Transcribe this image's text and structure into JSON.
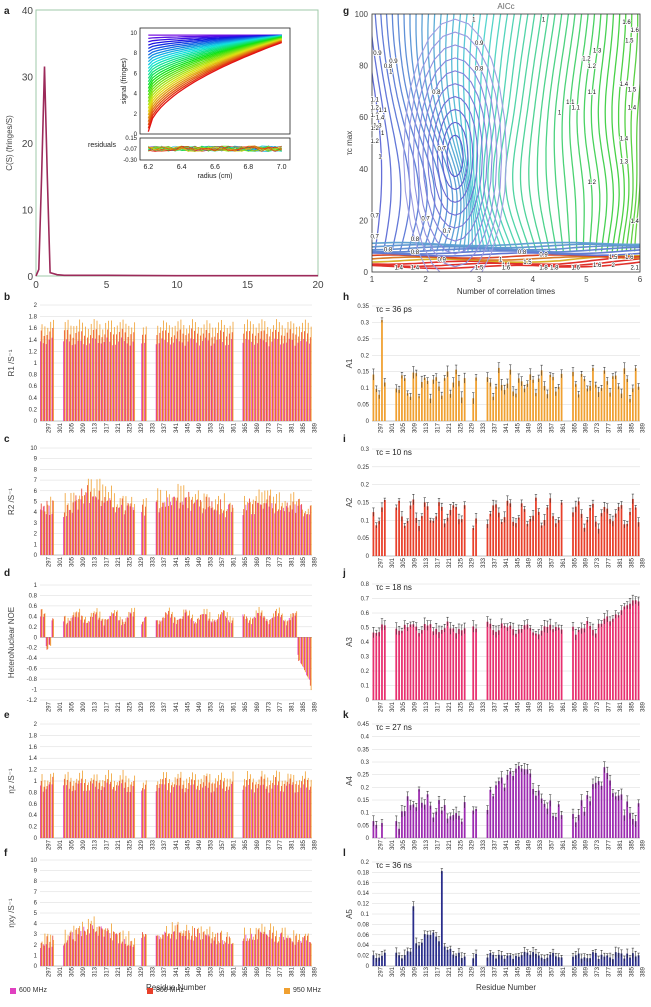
{
  "panels": {
    "a": "a",
    "b": "b",
    "c": "c",
    "d": "d",
    "e": "e",
    "f": "f",
    "g": "g",
    "h": "h",
    "i": "i",
    "j": "j",
    "k": "k",
    "l": "l"
  },
  "legend": {
    "items": [
      {
        "label": "600 MHz",
        "color": "#e040c0"
      },
      {
        "label": "800 MHz",
        "color": "#e8402a"
      },
      {
        "label": "950 MHz",
        "color": "#f0a030"
      }
    ]
  },
  "chart_data": [
    {
      "id": "a",
      "type": "line",
      "title": "",
      "xlabel": "",
      "ylabel": "C(S) (fringes/S)",
      "xlim": [
        0,
        20
      ],
      "ylim": [
        0,
        40
      ],
      "xticks": [
        "0",
        "5",
        "10",
        "15",
        "20"
      ],
      "yticks": [
        "0",
        "10",
        "20",
        "30",
        "40"
      ],
      "series": [
        {
          "name": "c(s)",
          "x": [
            0,
            0.2,
            0.4,
            0.6,
            0.8,
            1.0,
            1.5,
            2,
            5,
            10,
            15,
            20
          ],
          "y": [
            0,
            1,
            15,
            31.5,
            15,
            0.5,
            0.2,
            0.1,
            0.1,
            0.05,
            0.05,
            0.05
          ],
          "color": "#9c2a5a"
        }
      ],
      "inset": {
        "type": "line",
        "xlabel": "radius (cm)",
        "ylabel_top": "signal (fringes)",
        "ylabel_bottom": "residuals",
        "xticks": [
          "6.2",
          "6.4",
          "6.6",
          "6.8",
          "7.0"
        ],
        "yticks_top": [
          "0",
          "2",
          "4",
          "6",
          "8",
          "10"
        ],
        "yticks_bottom": [
          "0.15",
          "-0.07",
          "-0.30"
        ],
        "xlim": [
          6.15,
          7.05
        ],
        "ylim_top": [
          0,
          10.5
        ],
        "ylim_bottom": [
          -0.3,
          0.15
        ],
        "scan_count": 30
      }
    },
    {
      "id": "g",
      "type": "heatmap",
      "title": "AICc",
      "xlabel": "Number of correlation times",
      "ylabel": "τc max",
      "xlim": [
        1,
        6
      ],
      "ylim": [
        0,
        100
      ],
      "xticks": [
        "1",
        "2",
        "3",
        "4",
        "5",
        "6"
      ],
      "yticks": [
        "0",
        "20",
        "40",
        "60",
        "80",
        "100"
      ],
      "contour_labels": [
        {
          "text": "1",
          "x": 2.9,
          "y": 98
        },
        {
          "text": "1",
          "x": 4.2,
          "y": 98
        },
        {
          "text": "0.9",
          "x": 3.0,
          "y": 89
        },
        {
          "text": "0.8",
          "x": 3.0,
          "y": 79
        },
        {
          "text": "0.9",
          "x": 1.1,
          "y": 85
        },
        {
          "text": "0.8",
          "x": 1.3,
          "y": 80
        },
        {
          "text": "1",
          "x": 1.35,
          "y": 78
        },
        {
          "text": "0.9",
          "x": 1.4,
          "y": 82
        },
        {
          "text": "0.8",
          "x": 2.2,
          "y": 70
        },
        {
          "text": "0.7",
          "x": 2.3,
          "y": 48
        },
        {
          "text": "0.7",
          "x": 2.0,
          "y": 21
        },
        {
          "text": "0.7",
          "x": 2.4,
          "y": 16
        },
        {
          "text": "0.7",
          "x": 1.05,
          "y": 14
        },
        {
          "text": "0.7",
          "x": 1.05,
          "y": 22
        },
        {
          "text": "0.8",
          "x": 1.3,
          "y": 9
        },
        {
          "text": "0.8",
          "x": 1.8,
          "y": 13
        },
        {
          "text": "0.8",
          "x": 1.8,
          "y": 8
        },
        {
          "text": "0.8",
          "x": 3.8,
          "y": 8
        },
        {
          "text": "0.9",
          "x": 4.2,
          "y": 7
        },
        {
          "text": "0.9",
          "x": 2.3,
          "y": 5
        },
        {
          "text": "1",
          "x": 3.4,
          "y": 5
        },
        {
          "text": "1.1",
          "x": 3.5,
          "y": 3
        },
        {
          "text": "1",
          "x": 1.2,
          "y": 54
        },
        {
          "text": "1",
          "x": 1.15,
          "y": 45
        },
        {
          "text": "1.1",
          "x": 1.05,
          "y": 67
        },
        {
          "text": "1.2",
          "x": 1.05,
          "y": 51
        },
        {
          "text": "1.3",
          "x": 1.05,
          "y": 61
        },
        {
          "text": "1.3",
          "x": 1.1,
          "y": 57
        },
        {
          "text": "1.2",
          "x": 1.05,
          "y": 56
        },
        {
          "text": "1.4",
          "x": 1.15,
          "y": 60
        },
        {
          "text": "1.1",
          "x": 1.2,
          "y": 63
        },
        {
          "text": "1.2",
          "x": 1.05,
          "y": 64
        },
        {
          "text": "1.6",
          "x": 5.75,
          "y": 97
        },
        {
          "text": "1.6",
          "x": 5.9,
          "y": 94
        },
        {
          "text": "1.5",
          "x": 5.8,
          "y": 90
        },
        {
          "text": "1.3",
          "x": 5.2,
          "y": 86
        },
        {
          "text": "1.2",
          "x": 5.0,
          "y": 83
        },
        {
          "text": "1.2",
          "x": 5.1,
          "y": 80
        },
        {
          "text": "1.4",
          "x": 5.7,
          "y": 73
        },
        {
          "text": "1.5",
          "x": 5.85,
          "y": 71
        },
        {
          "text": "1.4",
          "x": 5.85,
          "y": 64
        },
        {
          "text": "1.1",
          "x": 4.7,
          "y": 66
        },
        {
          "text": "1.1",
          "x": 4.8,
          "y": 64
        },
        {
          "text": "1.1",
          "x": 5.1,
          "y": 70
        },
        {
          "text": "1",
          "x": 4.5,
          "y": 62
        },
        {
          "text": "1.4",
          "x": 5.7,
          "y": 52
        },
        {
          "text": "1.3",
          "x": 5.7,
          "y": 43
        },
        {
          "text": "1.2",
          "x": 5.1,
          "y": 35
        },
        {
          "text": "1.4",
          "x": 5.9,
          "y": 20
        },
        {
          "text": "1.5",
          "x": 5.5,
          "y": 6
        },
        {
          "text": "1.6",
          "x": 5.8,
          "y": 6
        },
        {
          "text": "1.6",
          "x": 5.2,
          "y": 3
        },
        {
          "text": "2",
          "x": 5.5,
          "y": 3
        },
        {
          "text": "2.1",
          "x": 5.9,
          "y": 2
        },
        {
          "text": "1.4",
          "x": 1.5,
          "y": 2
        },
        {
          "text": "1.4",
          "x": 1.8,
          "y": 2
        },
        {
          "text": "1.5",
          "x": 3.0,
          "y": 2
        },
        {
          "text": "1.6",
          "x": 3.5,
          "y": 2
        },
        {
          "text": "1.8",
          "x": 4.2,
          "y": 2
        },
        {
          "text": "1.5",
          "x": 3.9,
          "y": 4
        },
        {
          "text": "1.8",
          "x": 4.4,
          "y": 2
        },
        {
          "text": "1.6",
          "x": 4.8,
          "y": 2
        }
      ]
    },
    {
      "id": "b",
      "type": "bar",
      "ylabel": "R1 /S⁻¹",
      "ylim": [
        0,
        2
      ],
      "yticks": [
        "0",
        "0.2",
        "0.4",
        "0.6",
        "0.8",
        "1",
        "1.2",
        "1.4",
        "1.6",
        "1.8",
        "2"
      ],
      "profile": "flat",
      "base": 1.55,
      "amp": 0.12,
      "series": [
        {
          "name": "600 MHz",
          "color": "#e040c0"
        },
        {
          "name": "800 MHz",
          "color": "#e8402a"
        },
        {
          "name": "950 MHz",
          "color": "#f0a030"
        }
      ]
    },
    {
      "id": "c",
      "type": "bar",
      "ylabel": "R2 /S⁻¹",
      "ylim": [
        0,
        10
      ],
      "yticks": [
        "0",
        "1",
        "2",
        "3",
        "4",
        "5",
        "6",
        "7",
        "8",
        "9",
        "10"
      ],
      "profile": "r2",
      "base": 4.5,
      "amp": 3,
      "series": [
        {
          "name": "600 MHz",
          "color": "#e040c0"
        },
        {
          "name": "800 MHz",
          "color": "#e8402a"
        },
        {
          "name": "950 MHz",
          "color": "#f0a030"
        }
      ]
    },
    {
      "id": "d",
      "type": "bar",
      "ylabel": "HeteroNuclear NOE",
      "ylim": [
        -1.2,
        1
      ],
      "yticks": [
        "-1.2",
        "-1",
        "-0.8",
        "-0.6",
        "-0.4",
        "-0.2",
        "0",
        "0.2",
        "0.4",
        "0.6",
        "0.8",
        "1"
      ],
      "profile": "noe",
      "base": 0.4,
      "amp": 0.2,
      "series": [
        {
          "name": "600 MHz",
          "color": "#e040c0"
        },
        {
          "name": "800 MHz",
          "color": "#e8402a"
        },
        {
          "name": "950 MHz",
          "color": "#f0a030"
        }
      ]
    },
    {
      "id": "e",
      "type": "bar",
      "ylabel": "ηz /S⁻¹",
      "ylim": [
        0,
        2
      ],
      "yticks": [
        "0",
        "0.2",
        "0.4",
        "0.6",
        "0.8",
        "1",
        "1.2",
        "1.4",
        "1.6",
        "1.8",
        "2"
      ],
      "profile": "flat",
      "base": 1.0,
      "amp": 0.15,
      "series": [
        {
          "name": "600 MHz",
          "color": "#e040c0"
        },
        {
          "name": "800 MHz",
          "color": "#e8402a"
        },
        {
          "name": "950 MHz",
          "color": "#f0a030"
        }
      ]
    },
    {
      "id": "f",
      "type": "bar",
      "ylabel": "ηxy /S⁻¹",
      "xlabel": "Residue Number",
      "ylim": [
        0,
        10
      ],
      "yticks": [
        "0",
        "1",
        "2",
        "3",
        "4",
        "5",
        "6",
        "7",
        "8",
        "9",
        "10"
      ],
      "profile": "r2",
      "base": 2.5,
      "amp": 2.5,
      "series": [
        {
          "name": "600 MHz",
          "color": "#e040c0"
        },
        {
          "name": "800 MHz",
          "color": "#e8402a"
        },
        {
          "name": "950 MHz",
          "color": "#f0a030"
        }
      ]
    },
    {
      "id": "h",
      "type": "bar",
      "ylabel": "A1",
      "annotation": "τc = 36 ps",
      "ylim": [
        0,
        0.35
      ],
      "yticks": [
        "0",
        "0.05",
        "0.1",
        "0.15",
        "0.2",
        "0.25",
        "0.3",
        "0.35"
      ],
      "profile": "a1",
      "base": 0.1,
      "amp": 0.07,
      "series": [
        {
          "name": "A1",
          "color": "#f0a030"
        }
      ]
    },
    {
      "id": "i",
      "type": "bar",
      "ylabel": "A2",
      "annotation": "τc = 10 ns",
      "ylim": [
        0,
        0.3
      ],
      "yticks": [
        "0",
        "0.05",
        "0.1",
        "0.15",
        "0.2",
        "0.25",
        "0.3"
      ],
      "profile": "flat",
      "base": 0.12,
      "amp": 0.06,
      "series": [
        {
          "name": "A2",
          "color": "#e8402a"
        }
      ]
    },
    {
      "id": "j",
      "type": "bar",
      "ylabel": "A3",
      "annotation": "τc = 18 ns",
      "ylim": [
        0,
        0.8
      ],
      "yticks": [
        "0",
        "0.1",
        "0.2",
        "0.3",
        "0.4",
        "0.5",
        "0.6",
        "0.7",
        "0.8"
      ],
      "profile": "a3",
      "base": 0.5,
      "amp": 0.12,
      "series": [
        {
          "name": "A3",
          "color": "#e8306f"
        }
      ]
    },
    {
      "id": "k",
      "type": "bar",
      "ylabel": "A4",
      "annotation": "τc = 27 ns",
      "ylim": [
        0,
        0.45
      ],
      "yticks": [
        "0",
        "0.05",
        "0.1",
        "0.15",
        "0.2",
        "0.25",
        "0.3",
        "0.35",
        "0.4",
        "0.45"
      ],
      "profile": "a4",
      "base": 0.22,
      "amp": 0.17,
      "series": [
        {
          "name": "A4",
          "color": "#9c2ab0"
        }
      ]
    },
    {
      "id": "l",
      "type": "bar",
      "ylabel": "A5",
      "xlabel": "Residue Number",
      "annotation": "τc = 36 ns",
      "ylim": [
        0,
        0.2
      ],
      "yticks": [
        "0",
        "0.02",
        "0.04",
        "0.06",
        "0.08",
        "0.1",
        "0.12",
        "0.14",
        "0.16",
        "0.18",
        "0.2"
      ],
      "profile": "a5",
      "base": 0.02,
      "amp": 0.03,
      "series": [
        {
          "name": "A5",
          "color": "#2a2e8c"
        }
      ]
    }
  ],
  "residue_axis": {
    "first": 297,
    "last": 390,
    "tick_labels": [
      "297",
      "301",
      "305",
      "309",
      "313",
      "317",
      "321",
      "325",
      "329",
      "333",
      "337",
      "341",
      "345",
      "349",
      "353",
      "357",
      "361",
      "365",
      "369",
      "373",
      "377",
      "381",
      "385",
      "389"
    ],
    "tick_labels_f": [
      "297",
      "301",
      "305",
      "309",
      "313",
      "317",
      "321",
      "325",
      "329",
      "333",
      "337",
      "341",
      "345",
      "349",
      "353",
      "357",
      "361",
      "365",
      "369",
      "373",
      "377",
      "381",
      "385",
      "389"
    ],
    "gaps": [
      [
        302,
        304
      ],
      [
        330,
        331
      ],
      [
        334,
        336
      ],
      [
        364,
        366
      ]
    ]
  }
}
